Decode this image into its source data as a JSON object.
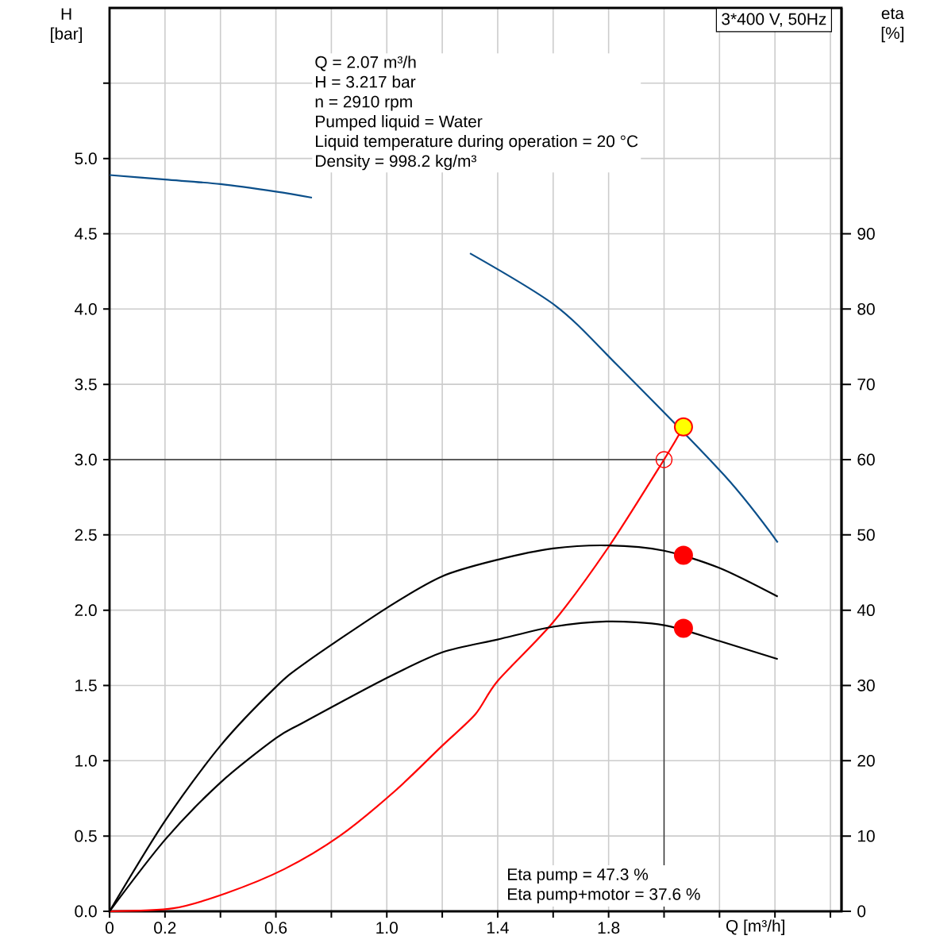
{
  "chart_data": {
    "type": "line",
    "title": "3*400 V, 50Hz",
    "xlabel": "Q [m³/h]",
    "ylabel": "H [bar]",
    "y2label": "eta [%]",
    "annotations": [
      "Q = 2.07 m³/h",
      "H = 3.217 bar",
      "n = 2910 rpm",
      "Pumped liquid = Water",
      "Liquid temperature during operation = 20 °C",
      "Density = 998.2 kg/m³",
      "Eta pump = 47.3 %",
      "Eta pump+motor = 37.6 %"
    ],
    "xlim": [
      0,
      2.64
    ],
    "ylim": [
      0,
      6.0
    ],
    "y2lim": [
      0,
      120
    ],
    "xticks": [
      0,
      0.2,
      {
        "value": 0.4,
        "label": null
      },
      0.6,
      {
        "value": 0.8,
        "label": null
      },
      {
        "value": 1.0,
        "label": "1.0"
      },
      {
        "value": 1.2,
        "label": null
      },
      1.4,
      {
        "value": 1.6,
        "label": null
      },
      1.8,
      {
        "value": 2.0,
        "label": null
      },
      {
        "value": 2.2,
        "label": null
      },
      {
        "value": 2.4,
        "label": null
      },
      {
        "value": 2.6,
        "label": null
      }
    ],
    "yticks": [
      {
        "value": 0,
        "label": "0.0"
      },
      0.5,
      {
        "value": 1,
        "label": "1.0"
      },
      1.5,
      {
        "value": 2,
        "label": "2.0"
      },
      2.5,
      {
        "value": 3,
        "label": "3.0"
      },
      3.5,
      {
        "value": 4,
        "label": "4.0"
      },
      4.5,
      {
        "value": 5,
        "label": "5.0"
      },
      {
        "value": 5.5,
        "label": null
      }
    ],
    "y2ticks": [
      0,
      10,
      20,
      30,
      40,
      50,
      60,
      70,
      80,
      90
    ],
    "grid": true,
    "ref_lines": [
      {
        "axis": "x",
        "value": 2.0,
        "color": "#333333"
      },
      {
        "axis": "y",
        "value": 3.0,
        "color": "#333333"
      }
    ],
    "series": [
      {
        "color": "#0b4f8a",
        "x": [
          0,
          0.2,
          0.4,
          0.6,
          0.73,
          null,
          1.3,
          1.61,
          1.83,
          2.22,
          2.41
        ],
        "values": [
          4.89,
          4.86,
          4.83,
          4.78,
          4.74,
          null,
          4.37,
          4.02,
          3.63,
          2.89,
          2.45
        ]
      },
      {
        "color": "#000000",
        "axis": "y2",
        "x": [
          0,
          0.2,
          0.4,
          0.6,
          0.71,
          1.0,
          1.2,
          1.4,
          1.6,
          1.8,
          2.0,
          2.2,
          2.41
        ],
        "values": [
          0,
          12.0,
          22.0,
          29.8,
          33.1,
          40.3,
          44.5,
          46.7,
          48.2,
          48.6,
          47.9,
          45.6,
          41.8
        ]
      },
      {
        "color": "#000000",
        "axis": "y2",
        "x": [
          0,
          0.2,
          0.4,
          0.6,
          0.7,
          1.0,
          1.2,
          1.4,
          1.6,
          1.8,
          2.0,
          2.2,
          2.41
        ],
        "values": [
          0,
          9.5,
          17.1,
          23.0,
          25.1,
          31.0,
          34.4,
          36.1,
          37.8,
          38.5,
          38.0,
          35.9,
          33.5
        ]
      },
      {
        "color": "#ff0000",
        "x": [
          0,
          0.23,
          0.42,
          0.63,
          0.83,
          1.03,
          1.2,
          1.32,
          1.4,
          1.6,
          1.8,
          2.0,
          2.07
        ],
        "values": [
          0,
          0.02,
          0.12,
          0.28,
          0.5,
          0.8,
          1.1,
          1.31,
          1.53,
          1.92,
          2.42,
          3.0,
          3.217
        ]
      },
      {
        "type": "scatter",
        "marker": "circle",
        "color": "#ffff00",
        "x": [
          2.07
        ],
        "values": [
          3.217
        ]
      },
      {
        "type": "scatter",
        "marker": "circle",
        "color": "#ff0000",
        "axis": "y2",
        "x": [
          2.07,
          2.07
        ],
        "values": [
          47.3,
          37.6
        ]
      }
    ]
  }
}
